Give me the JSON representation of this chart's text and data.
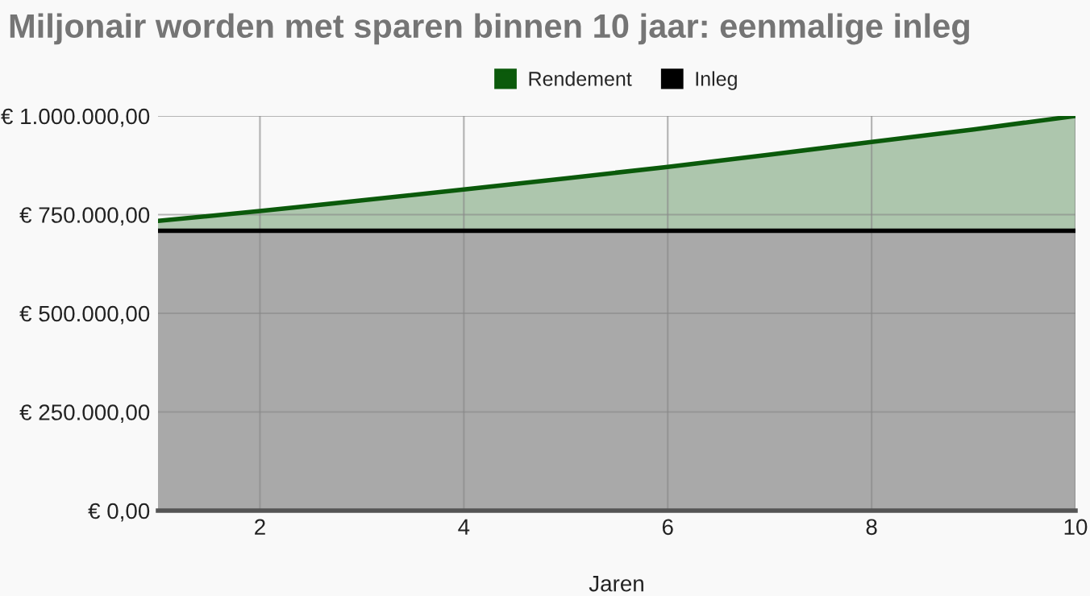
{
  "chart_data": {
    "type": "area",
    "title": "Miljonair worden met sparen binnen 10 jaar: eenmalige inleg",
    "xlabel": "Jaren",
    "x": [
      1,
      2,
      3,
      4,
      5,
      6,
      7,
      8,
      9,
      10
    ],
    "series": [
      {
        "name": "Rendement",
        "color": "#0b5a0b",
        "values": [
          734000,
          759000,
          786000,
          814000,
          842000,
          871000,
          902000,
          934000,
          966000,
          1000000
        ]
      },
      {
        "name": "Inleg",
        "color": "#000000",
        "values": [
          709000,
          709000,
          709000,
          709000,
          709000,
          709000,
          709000,
          709000,
          709000,
          709000
        ]
      }
    ],
    "xlim": [
      1,
      10
    ],
    "xticks": [
      2,
      4,
      6,
      8,
      10
    ],
    "ylim": [
      0,
      1000000
    ],
    "yticks": [
      {
        "value": 0,
        "label": "€ 0,00"
      },
      {
        "value": 250000,
        "label": "€ 250.000,00"
      },
      {
        "value": 500000,
        "label": "€ 500.000,00"
      },
      {
        "value": 750000,
        "label": "€ 750.000,00"
      },
      {
        "value": 1000000,
        "label": "€ 1.000.000,00"
      }
    ],
    "grid": true,
    "legend": "top"
  }
}
